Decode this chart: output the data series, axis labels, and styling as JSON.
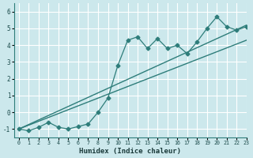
{
  "xlabel": "Humidex (Indice chaleur)",
  "xlim": [
    -0.5,
    23
  ],
  "ylim": [
    -1.5,
    6.5
  ],
  "yticks": [
    -1,
    0,
    1,
    2,
    3,
    4,
    5,
    6
  ],
  "xticks": [
    0,
    1,
    2,
    3,
    4,
    5,
    6,
    7,
    8,
    9,
    10,
    11,
    12,
    13,
    14,
    15,
    16,
    17,
    18,
    19,
    20,
    21,
    22,
    23
  ],
  "bg_color": "#cce8ec",
  "line_color": "#2e7d7a",
  "grid_color": "#ffffff",
  "data_x": [
    0,
    1,
    2,
    3,
    4,
    5,
    6,
    7,
    8,
    9,
    10,
    11,
    12,
    13,
    14,
    15,
    16,
    17,
    18,
    19,
    20,
    21,
    22,
    23
  ],
  "data_y": [
    -1.0,
    -1.1,
    -0.9,
    -0.6,
    -0.9,
    -1.0,
    -0.85,
    -0.7,
    0.0,
    0.85,
    2.8,
    4.3,
    4.5,
    3.8,
    4.4,
    3.8,
    4.0,
    3.5,
    4.2,
    5.0,
    5.7,
    5.1,
    4.9,
    5.1
  ],
  "line1_x": [
    0,
    23
  ],
  "line1_y": [
    -1.0,
    4.3
  ],
  "line2_x": [
    0,
    23
  ],
  "line2_y": [
    -1.0,
    5.2
  ]
}
